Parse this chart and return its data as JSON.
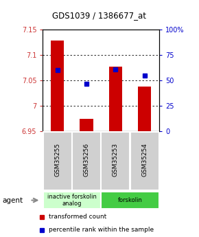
{
  "title": "GDS1039 / 1386677_at",
  "samples": [
    "GSM35255",
    "GSM35256",
    "GSM35253",
    "GSM35254"
  ],
  "bar_values": [
    7.128,
    6.975,
    7.078,
    7.038
  ],
  "bar_bottom": 6.95,
  "percentile_values": [
    0.6,
    0.47,
    0.61,
    0.55
  ],
  "ylim_left": [
    6.95,
    7.15
  ],
  "ylim_right": [
    0,
    1
  ],
  "yticks_left": [
    6.95,
    7.0,
    7.05,
    7.1,
    7.15
  ],
  "ytick_labels_left": [
    "6.95",
    "7",
    "7.05",
    "7.1",
    "7.15"
  ],
  "yticks_right": [
    0,
    0.25,
    0.5,
    0.75,
    1.0
  ],
  "ytick_labels_right": [
    "0",
    "25",
    "50",
    "75",
    "100%"
  ],
  "bar_color": "#cc0000",
  "percentile_color": "#0000cc",
  "agent_groups": [
    {
      "label": "inactive forskolin\nanalog",
      "samples": [
        0,
        1
      ],
      "color": "#ccffcc"
    },
    {
      "label": "forskolin",
      "samples": [
        2,
        3
      ],
      "color": "#44cc44"
    }
  ],
  "legend_red": "transformed count",
  "legend_blue": "percentile rank within the sample",
  "agent_label": "agent",
  "background_color": "#ffffff"
}
